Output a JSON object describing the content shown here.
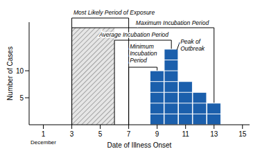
{
  "chart_data": {
    "type": "bar",
    "x_label": "Date of Illness Onset",
    "x_sublabel": "December",
    "y_label": "Number of Cases",
    "x": [
      9,
      10,
      11,
      12,
      13
    ],
    "values": [
      10,
      14,
      8,
      6,
      4
    ],
    "color": "#1b5fac",
    "xlim": [
      0,
      15.5
    ],
    "xticks": [
      1,
      3,
      5,
      7,
      9,
      11,
      13,
      15
    ],
    "ylim": [
      0,
      19
    ],
    "yticks": [
      5,
      10
    ],
    "shaded": [
      3,
      6
    ],
    "annotations": [
      {
        "text": "Most Likely Period of Exposure",
        "x": [
          3,
          7
        ]
      },
      {
        "text": "Maximum Incubation Period",
        "x": [
          3,
          13
        ]
      },
      {
        "text": "Average Incubation Period",
        "x": [
          6,
          10
        ]
      },
      {
        "text": "Minimum Incubation Period",
        "x": [
          7,
          9
        ]
      }
    ],
    "peak": {
      "text": "Peak of Outbreak",
      "x": 10
    }
  }
}
